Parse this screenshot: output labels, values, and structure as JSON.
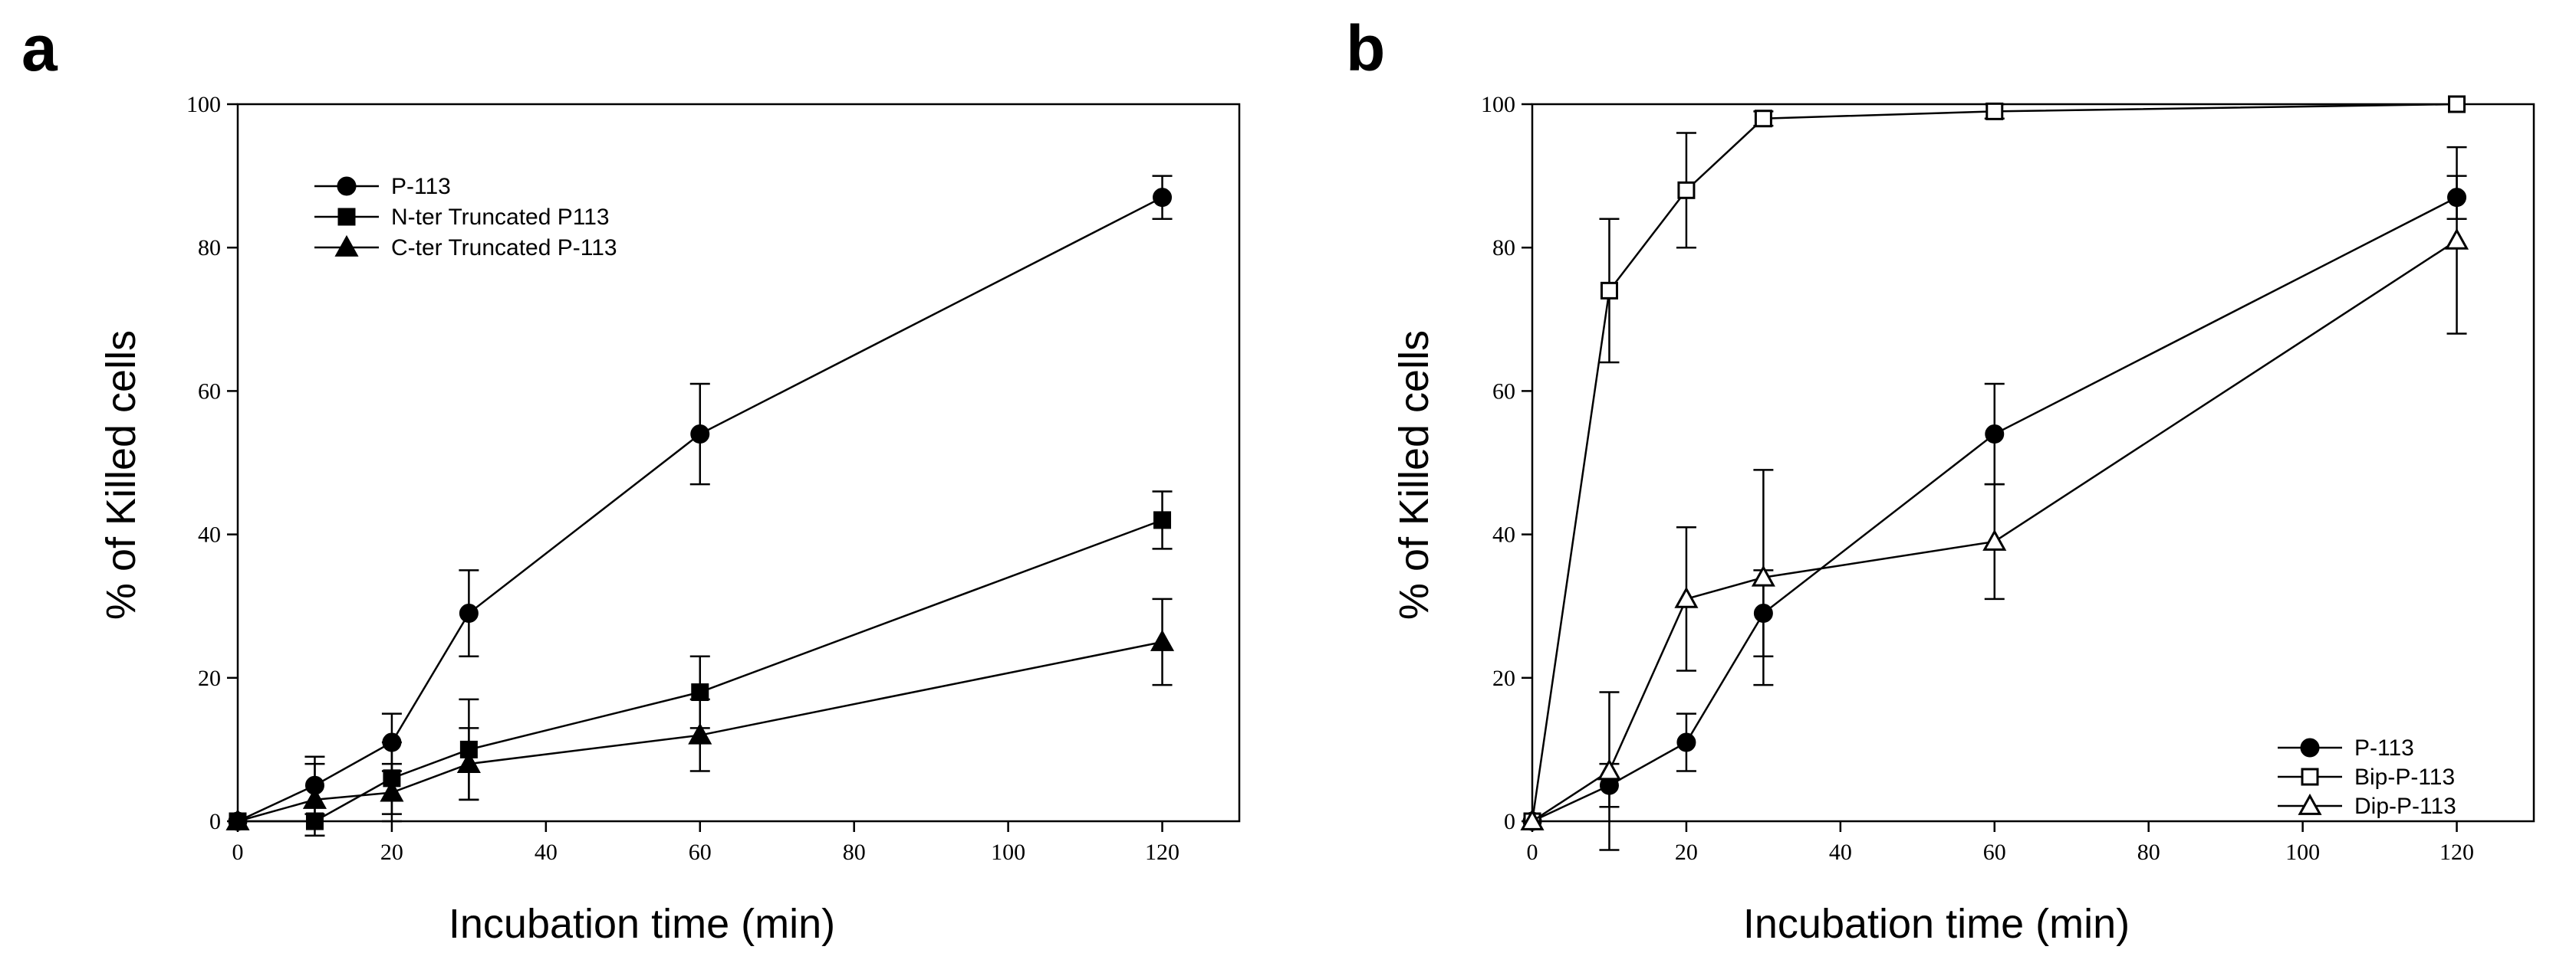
{
  "chart_data": [
    {
      "type": "line",
      "panel": "a",
      "xlabel": "Incubation time (min)",
      "ylabel": "% of Killed cells",
      "xlim": [
        0,
        130
      ],
      "ylim": [
        0,
        100
      ],
      "xticks": [
        0,
        20,
        40,
        60,
        80,
        100,
        120
      ],
      "yticks": [
        0,
        20,
        40,
        60,
        80,
        100
      ],
      "legend_position": "top-left",
      "series": [
        {
          "name": "P-113",
          "marker": "circle-filled",
          "x": [
            0,
            10,
            20,
            30,
            60,
            120
          ],
          "y": [
            0,
            5,
            11,
            29,
            54,
            87
          ],
          "err": [
            0,
            4,
            4,
            6,
            7,
            3
          ]
        },
        {
          "name": "N-ter Truncated P113",
          "marker": "square-filled",
          "x": [
            0,
            10,
            20,
            30,
            60,
            120
          ],
          "y": [
            0,
            0,
            6,
            10,
            18,
            42
          ],
          "err": [
            0,
            0,
            5,
            7,
            5,
            4
          ]
        },
        {
          "name": "C-ter Truncated P-113",
          "marker": "triangle-filled",
          "x": [
            0,
            10,
            20,
            30,
            60,
            120
          ],
          "y": [
            0,
            3,
            4,
            8,
            12,
            25
          ],
          "err": [
            0,
            5,
            4,
            5,
            5,
            6
          ]
        }
      ]
    },
    {
      "type": "line",
      "panel": "b",
      "xlabel": "Incubation time (min)",
      "ylabel": "% of Killed cells",
      "xlim": [
        0,
        130
      ],
      "ylim": [
        0,
        100
      ],
      "xticks": [
        0,
        20,
        40,
        60,
        80,
        100,
        120
      ],
      "yticks": [
        0,
        20,
        40,
        60,
        80,
        100
      ],
      "legend_position": "bottom-right",
      "series": [
        {
          "name": "P-113",
          "marker": "circle-filled",
          "x": [
            0,
            10,
            20,
            30,
            60,
            120
          ],
          "y": [
            0,
            5,
            11,
            29,
            54,
            87
          ],
          "err": [
            0,
            3,
            4,
            6,
            7,
            3
          ]
        },
        {
          "name": "Bip-P-113",
          "marker": "square-open",
          "x": [
            0,
            10,
            20,
            30,
            60,
            120
          ],
          "y": [
            0,
            74,
            88,
            98,
            99,
            100
          ],
          "err": [
            0,
            10,
            8,
            1,
            1,
            0
          ]
        },
        {
          "name": "Dip-P-113",
          "marker": "triangle-open",
          "x": [
            0,
            10,
            20,
            30,
            60,
            120
          ],
          "y": [
            0,
            7,
            31,
            34,
            39,
            81
          ],
          "err": [
            0,
            11,
            10,
            15,
            8,
            13
          ]
        }
      ]
    }
  ]
}
